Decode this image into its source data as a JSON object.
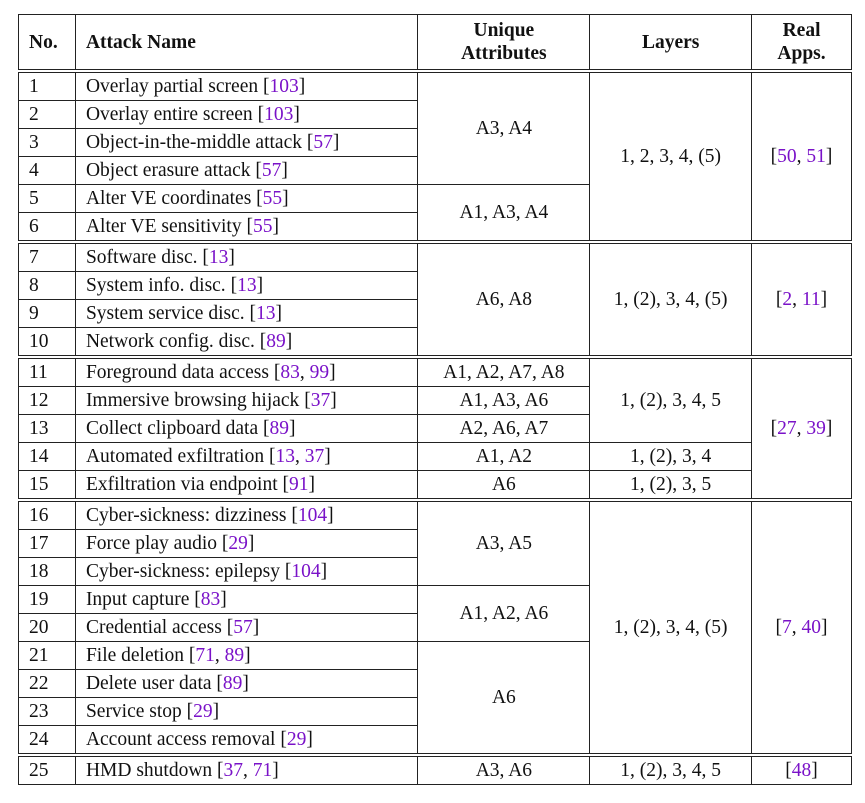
{
  "headers": [
    "No.",
    "Attack Name",
    "Unique Attributes",
    "Layers",
    "Real Apps."
  ],
  "rows": [
    {
      "no": "1",
      "name": "Overlay partial screen",
      "cites": [
        "103"
      ]
    },
    {
      "no": "2",
      "name": "Overlay entire screen",
      "cites": [
        "103"
      ]
    },
    {
      "no": "3",
      "name": "Object-in-the-middle attack",
      "cites": [
        "57"
      ]
    },
    {
      "no": "4",
      "name": "Object erasure attack",
      "cites": [
        "57"
      ]
    },
    {
      "no": "5",
      "name": "Alter VE coordinates",
      "cites": [
        "55"
      ]
    },
    {
      "no": "6",
      "name": "Alter VE sensitivity",
      "cites": [
        "55"
      ]
    },
    {
      "no": "7",
      "name": "Software disc.",
      "cites": [
        "13"
      ]
    },
    {
      "no": "8",
      "name": "System info. disc.",
      "cites": [
        "13"
      ]
    },
    {
      "no": "9",
      "name": "System service disc.",
      "cites": [
        "13"
      ]
    },
    {
      "no": "10",
      "name": "Network config. disc.",
      "cites": [
        "89"
      ]
    },
    {
      "no": "11",
      "name": "Foreground data access",
      "cites": [
        "83",
        "99"
      ]
    },
    {
      "no": "12",
      "name": "Immersive browsing hijack",
      "cites": [
        "37"
      ]
    },
    {
      "no": "13",
      "name": "Collect clipboard data",
      "cites": [
        "89"
      ]
    },
    {
      "no": "14",
      "name": "Automated exfiltration",
      "cites": [
        "13",
        "37"
      ]
    },
    {
      "no": "15",
      "name": "Exfiltration via endpoint",
      "cites": [
        "91"
      ]
    },
    {
      "no": "16",
      "name": "Cyber-sickness: dizziness",
      "cites": [
        "104"
      ]
    },
    {
      "no": "17",
      "name": "Force play audio",
      "cites": [
        "29"
      ]
    },
    {
      "no": "18",
      "name": "Cyber-sickness: epilepsy",
      "cites": [
        "104"
      ]
    },
    {
      "no": "19",
      "name": "Input capture",
      "cites": [
        "83"
      ]
    },
    {
      "no": "20",
      "name": "Credential access",
      "cites": [
        "57"
      ]
    },
    {
      "no": "21",
      "name": "File deletion",
      "cites": [
        "71",
        "89"
      ]
    },
    {
      "no": "22",
      "name": "Delete user data",
      "cites": [
        "89"
      ]
    },
    {
      "no": "23",
      "name": "Service stop",
      "cites": [
        "29"
      ]
    },
    {
      "no": "24",
      "name": "Account access removal",
      "cites": [
        "29"
      ]
    },
    {
      "no": "25",
      "name": "HMD shutdown",
      "cites": [
        "37",
        "71"
      ]
    }
  ],
  "group_starts": [
    1,
    7,
    11,
    16,
    25
  ],
  "attributes": [
    {
      "text": "A3, A4",
      "span": 4
    },
    {
      "text": "A1, A3, A4",
      "span": 2
    },
    {
      "text": "A6, A8",
      "span": 4
    },
    {
      "text": "A1, A2, A7, A8",
      "span": 1
    },
    {
      "text": "A1, A3, A6",
      "span": 1
    },
    {
      "text": "A2, A6, A7",
      "span": 1
    },
    {
      "text": "A1, A2",
      "span": 1
    },
    {
      "text": "A6",
      "span": 1
    },
    {
      "text": "A3, A5",
      "span": 3
    },
    {
      "text": "A1, A2, A6",
      "span": 2
    },
    {
      "text": "A6",
      "span": 4
    },
    {
      "text": "A3, A6",
      "span": 1
    }
  ],
  "layers": [
    {
      "text": "1, 2, 3, 4, (5)",
      "span": 6
    },
    {
      "text": "1, (2), 3, 4, (5)",
      "span": 4
    },
    {
      "text": "1, (2), 3, 4, 5",
      "span": 3
    },
    {
      "text": "1, (2), 3, 4",
      "span": 1
    },
    {
      "text": "1, (2), 3, 5",
      "span": 1
    },
    {
      "text": "1, (2), 3, 4, (5)",
      "span": 9
    },
    {
      "text": "1, (2), 3, 4, 5",
      "span": 1
    }
  ],
  "real_apps": [
    {
      "cites": [
        "50",
        "51"
      ],
      "span": 6
    },
    {
      "cites": [
        "2",
        "11"
      ],
      "span": 4
    },
    {
      "cites": [
        "27",
        "39"
      ],
      "span": 5
    },
    {
      "cites": [
        "7",
        "40"
      ],
      "span": 9
    },
    {
      "cites": [
        "48"
      ],
      "span": 1
    }
  ],
  "colors": {
    "citation": "#7a12c8",
    "rule": "#222222"
  }
}
